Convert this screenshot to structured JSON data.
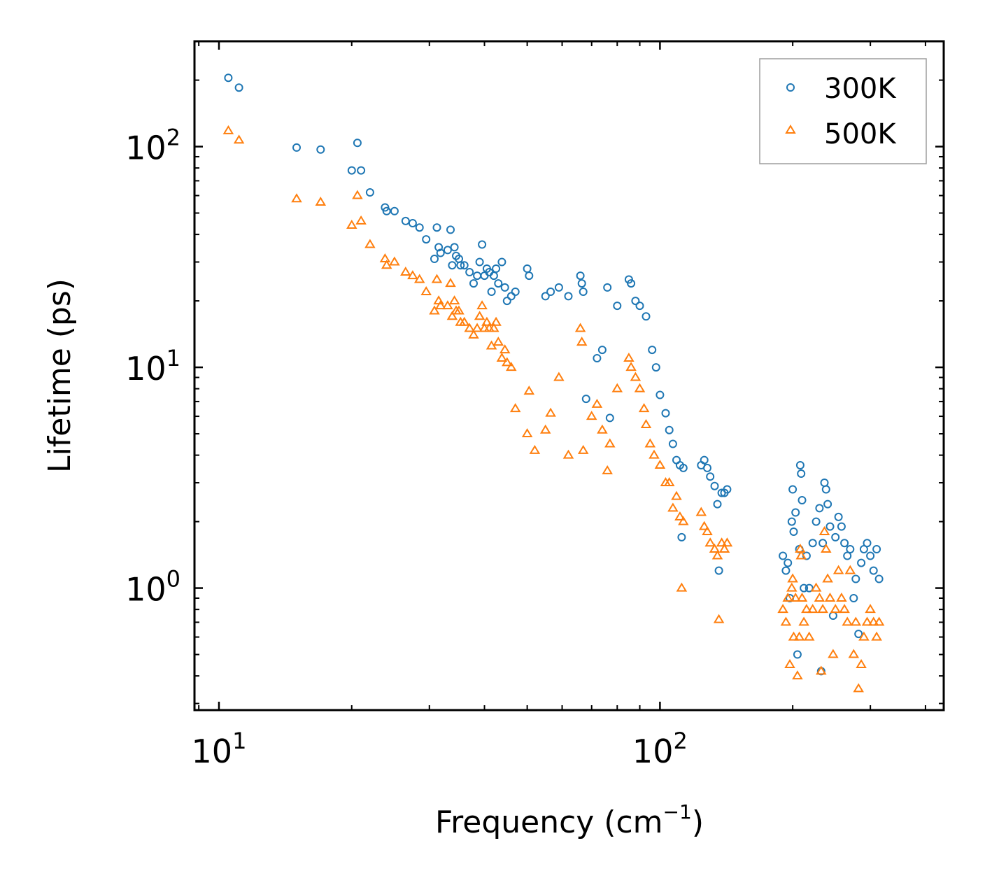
{
  "chart_data": {
    "type": "scatter",
    "xscale": "log",
    "yscale": "log",
    "xlabel": "Frequency (cm",
    "xlabel_sup": "−1",
    "xlabel_end": ")",
    "ylabel": "Lifetime (ps)",
    "xlim": [
      8.8,
      440
    ],
    "ylim": [
      0.28,
      300
    ],
    "x_major_ticks": [
      {
        "value": 10,
        "base": "10",
        "exp": "1"
      },
      {
        "value": 100,
        "base": "10",
        "exp": "2"
      }
    ],
    "y_major_ticks": [
      {
        "value": 1,
        "base": "10",
        "exp": "0"
      },
      {
        "value": 10,
        "base": "10",
        "exp": "1"
      },
      {
        "value": 100,
        "base": "10",
        "exp": "2"
      }
    ],
    "legend_position": "top-right",
    "series": [
      {
        "name": "300K",
        "marker": "circle",
        "color": "#1f77b4",
        "points": [
          [
            10.5,
            205
          ],
          [
            11.1,
            185
          ],
          [
            15.0,
            99
          ],
          [
            17.0,
            97
          ],
          [
            20.0,
            78
          ],
          [
            20.6,
            104
          ],
          [
            21.0,
            78
          ],
          [
            22.0,
            62
          ],
          [
            23.8,
            53
          ],
          [
            24.0,
            51
          ],
          [
            25.0,
            51
          ],
          [
            26.5,
            46
          ],
          [
            27.5,
            45
          ],
          [
            28.5,
            43
          ],
          [
            29.5,
            38
          ],
          [
            30.8,
            31
          ],
          [
            31.2,
            43
          ],
          [
            31.5,
            35
          ],
          [
            31.8,
            33
          ],
          [
            33.0,
            34
          ],
          [
            33.5,
            42
          ],
          [
            33.8,
            29
          ],
          [
            34.2,
            35
          ],
          [
            34.5,
            32
          ],
          [
            35.0,
            31
          ],
          [
            35.3,
            29
          ],
          [
            36.0,
            29
          ],
          [
            37.0,
            27
          ],
          [
            37.8,
            24
          ],
          [
            38.5,
            26
          ],
          [
            39.0,
            30
          ],
          [
            39.5,
            36
          ],
          [
            40.0,
            26
          ],
          [
            40.5,
            28
          ],
          [
            41.0,
            27
          ],
          [
            41.5,
            22
          ],
          [
            42.0,
            26
          ],
          [
            42.5,
            28
          ],
          [
            43.0,
            24
          ],
          [
            43.8,
            30
          ],
          [
            44.5,
            23
          ],
          [
            45.0,
            20
          ],
          [
            46.0,
            21
          ],
          [
            47.0,
            22
          ],
          [
            50.0,
            28
          ],
          [
            50.5,
            26
          ],
          [
            55.0,
            21
          ],
          [
            56.5,
            22
          ],
          [
            59.0,
            23
          ],
          [
            62.0,
            21
          ],
          [
            66.0,
            26
          ],
          [
            66.5,
            24
          ],
          [
            67.0,
            22
          ],
          [
            68.0,
            7.2
          ],
          [
            72.0,
            11
          ],
          [
            74.0,
            12
          ],
          [
            76.0,
            23
          ],
          [
            77.0,
            5.9
          ],
          [
            80.0,
            19
          ],
          [
            85.0,
            25
          ],
          [
            86.0,
            24
          ],
          [
            88.0,
            20
          ],
          [
            90.0,
            19
          ],
          [
            93.0,
            17
          ],
          [
            96.0,
            12
          ],
          [
            98.0,
            10
          ],
          [
            100.0,
            7.5
          ],
          [
            103.0,
            6.2
          ],
          [
            105.0,
            5.2
          ],
          [
            107.0,
            4.5
          ],
          [
            109.0,
            3.8
          ],
          [
            111.0,
            3.6
          ],
          [
            112.0,
            1.7
          ],
          [
            113.0,
            3.5
          ],
          [
            124.0,
            3.6
          ],
          [
            126.0,
            3.8
          ],
          [
            128.0,
            3.5
          ],
          [
            130.0,
            3.2
          ],
          [
            133.0,
            2.9
          ],
          [
            135.0,
            2.4
          ],
          [
            136.0,
            1.2
          ],
          [
            138.0,
            2.7
          ],
          [
            140.0,
            2.7
          ],
          [
            142.0,
            2.8
          ],
          [
            190.0,
            1.4
          ],
          [
            193.0,
            1.2
          ],
          [
            195.0,
            1.3
          ],
          [
            197.0,
            0.9
          ],
          [
            199.0,
            2.0
          ],
          [
            200.0,
            2.8
          ],
          [
            201.0,
            1.8
          ],
          [
            203.0,
            2.2
          ],
          [
            205.0,
            0.5
          ],
          [
            207.0,
            1.5
          ],
          [
            208.0,
            3.6
          ],
          [
            209.0,
            3.3
          ],
          [
            210.0,
            2.5
          ],
          [
            212.0,
            1.0
          ],
          [
            215.0,
            1.4
          ],
          [
            218.0,
            1.0
          ],
          [
            222.0,
            1.6
          ],
          [
            226.0,
            2.0
          ],
          [
            230.0,
            2.3
          ],
          [
            232.0,
            0.42
          ],
          [
            234.0,
            1.6
          ],
          [
            236.0,
            3.0
          ],
          [
            238.0,
            2.8
          ],
          [
            240.0,
            2.4
          ],
          [
            243.0,
            1.9
          ],
          [
            247.0,
            0.75
          ],
          [
            250.0,
            1.7
          ],
          [
            254.0,
            2.1
          ],
          [
            258.0,
            1.9
          ],
          [
            262.0,
            1.6
          ],
          [
            266.0,
            1.4
          ],
          [
            270.0,
            1.5
          ],
          [
            275.0,
            0.9
          ],
          [
            278.0,
            1.1
          ],
          [
            282.0,
            0.62
          ],
          [
            286.0,
            1.3
          ],
          [
            290.0,
            1.5
          ],
          [
            295.0,
            1.6
          ],
          [
            300.0,
            1.4
          ],
          [
            305.0,
            1.2
          ],
          [
            310.0,
            1.5
          ],
          [
            314.0,
            1.1
          ]
        ]
      },
      {
        "name": "500K",
        "marker": "triangle",
        "color": "#ff7f0e",
        "points": [
          [
            10.5,
            118
          ],
          [
            11.1,
            107
          ],
          [
            15.0,
            58
          ],
          [
            17.0,
            56
          ],
          [
            20.0,
            44
          ],
          [
            20.6,
            60
          ],
          [
            21.0,
            46
          ],
          [
            22.0,
            36
          ],
          [
            23.8,
            31
          ],
          [
            24.0,
            29
          ],
          [
            25.0,
            30
          ],
          [
            26.5,
            27
          ],
          [
            27.5,
            26
          ],
          [
            28.5,
            25
          ],
          [
            29.5,
            22
          ],
          [
            30.8,
            18
          ],
          [
            31.2,
            25
          ],
          [
            31.5,
            20
          ],
          [
            31.8,
            19
          ],
          [
            33.0,
            19
          ],
          [
            33.5,
            24
          ],
          [
            33.8,
            17
          ],
          [
            34.2,
            20
          ],
          [
            34.5,
            18
          ],
          [
            35.0,
            18
          ],
          [
            35.3,
            16
          ],
          [
            36.0,
            16
          ],
          [
            37.0,
            15
          ],
          [
            37.8,
            14
          ],
          [
            38.5,
            15
          ],
          [
            39.0,
            17
          ],
          [
            39.5,
            19
          ],
          [
            40.0,
            15
          ],
          [
            40.5,
            16
          ],
          [
            41.0,
            15
          ],
          [
            41.5,
            12.5
          ],
          [
            42.0,
            15
          ],
          [
            42.5,
            16
          ],
          [
            43.0,
            13
          ],
          [
            43.8,
            11
          ],
          [
            44.5,
            12
          ],
          [
            45.0,
            10.5
          ],
          [
            46.0,
            10
          ],
          [
            47.0,
            6.5
          ],
          [
            50.0,
            5.0
          ],
          [
            50.5,
            7.8
          ],
          [
            52.0,
            4.2
          ],
          [
            55.0,
            5.2
          ],
          [
            56.5,
            6.2
          ],
          [
            59.0,
            9.0
          ],
          [
            62.0,
            4.0
          ],
          [
            66.0,
            15
          ],
          [
            66.5,
            13
          ],
          [
            67.0,
            4.2
          ],
          [
            70.0,
            6.0
          ],
          [
            72.0,
            6.8
          ],
          [
            74.0,
            5.2
          ],
          [
            76.0,
            3.4
          ],
          [
            77.0,
            4.5
          ],
          [
            80.0,
            8.0
          ],
          [
            85.0,
            11
          ],
          [
            86.0,
            10
          ],
          [
            88.0,
            9.0
          ],
          [
            90.0,
            8.0
          ],
          [
            92.0,
            6.5
          ],
          [
            93.0,
            5.5
          ],
          [
            95.0,
            4.5
          ],
          [
            97.0,
            4.0
          ],
          [
            100.0,
            3.6
          ],
          [
            103.0,
            3.0
          ],
          [
            105.0,
            3.0
          ],
          [
            107.0,
            2.3
          ],
          [
            109.0,
            2.6
          ],
          [
            111.0,
            2.1
          ],
          [
            112.0,
            1.0
          ],
          [
            113.0,
            2.0
          ],
          [
            124.0,
            2.2
          ],
          [
            126.0,
            1.9
          ],
          [
            128.0,
            1.8
          ],
          [
            130.0,
            1.6
          ],
          [
            133.0,
            1.5
          ],
          [
            135.0,
            1.4
          ],
          [
            136.0,
            0.72
          ],
          [
            138.0,
            1.6
          ],
          [
            140.0,
            1.5
          ],
          [
            142.0,
            1.6
          ],
          [
            190.0,
            0.8
          ],
          [
            193.0,
            0.7
          ],
          [
            195.0,
            0.9
          ],
          [
            197.0,
            0.45
          ],
          [
            199.0,
            1.0
          ],
          [
            200.0,
            1.1
          ],
          [
            201.0,
            0.6
          ],
          [
            203.0,
            0.9
          ],
          [
            205.0,
            0.4
          ],
          [
            207.0,
            0.6
          ],
          [
            208.0,
            1.5
          ],
          [
            209.0,
            1.4
          ],
          [
            210.0,
            0.9
          ],
          [
            212.0,
            0.7
          ],
          [
            215.0,
            0.8
          ],
          [
            218.0,
            0.6
          ],
          [
            222.0,
            0.8
          ],
          [
            226.0,
            1.0
          ],
          [
            230.0,
            0.9
          ],
          [
            232.0,
            0.42
          ],
          [
            234.0,
            0.8
          ],
          [
            236.0,
            1.8
          ],
          [
            238.0,
            1.5
          ],
          [
            240.0,
            1.1
          ],
          [
            243.0,
            0.9
          ],
          [
            247.0,
            0.5
          ],
          [
            250.0,
            0.8
          ],
          [
            254.0,
            1.2
          ],
          [
            258.0,
            0.9
          ],
          [
            262.0,
            0.8
          ],
          [
            266.0,
            0.7
          ],
          [
            270.0,
            1.2
          ],
          [
            275.0,
            0.5
          ],
          [
            278.0,
            0.7
          ],
          [
            282.0,
            0.35
          ],
          [
            286.0,
            0.45
          ],
          [
            290.0,
            0.6
          ],
          [
            295.0,
            0.7
          ],
          [
            300.0,
            0.8
          ],
          [
            305.0,
            0.7
          ],
          [
            310.0,
            0.6
          ],
          [
            314.0,
            0.7
          ]
        ]
      }
    ]
  }
}
